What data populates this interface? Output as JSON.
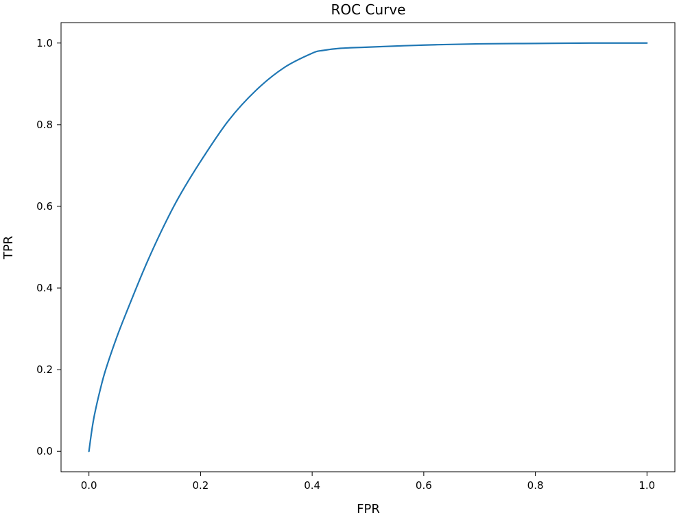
{
  "chart_data": {
    "type": "line",
    "title": "ROC Curve",
    "xlabel": "FPR",
    "ylabel": "TPR",
    "xlim": [
      -0.05,
      1.05
    ],
    "ylim": [
      -0.05,
      1.05
    ],
    "xticks": [
      0.0,
      0.2,
      0.4,
      0.6,
      0.8,
      1.0
    ],
    "yticks": [
      0.0,
      0.2,
      0.4,
      0.6,
      0.8,
      1.0
    ],
    "xtick_labels": [
      "0.0",
      "0.2",
      "0.4",
      "0.6",
      "0.8",
      "1.0"
    ],
    "ytick_labels": [
      "0.0",
      "0.2",
      "0.4",
      "0.6",
      "0.8",
      "1.0"
    ],
    "grid": false,
    "legend": null,
    "series": [
      {
        "color": "#1f77b4",
        "x": [
          0.0,
          0.005,
          0.01,
          0.02,
          0.03,
          0.05,
          0.07,
          0.1,
          0.13,
          0.16,
          0.2,
          0.25,
          0.3,
          0.35,
          0.4,
          0.42,
          0.45,
          0.5,
          0.6,
          0.7,
          0.8,
          0.9,
          1.0
        ],
        "y": [
          0.0,
          0.05,
          0.09,
          0.15,
          0.2,
          0.28,
          0.35,
          0.45,
          0.54,
          0.62,
          0.71,
          0.81,
          0.885,
          0.94,
          0.975,
          0.982,
          0.987,
          0.99,
          0.995,
          0.998,
          0.999,
          1.0,
          1.0
        ]
      }
    ]
  }
}
